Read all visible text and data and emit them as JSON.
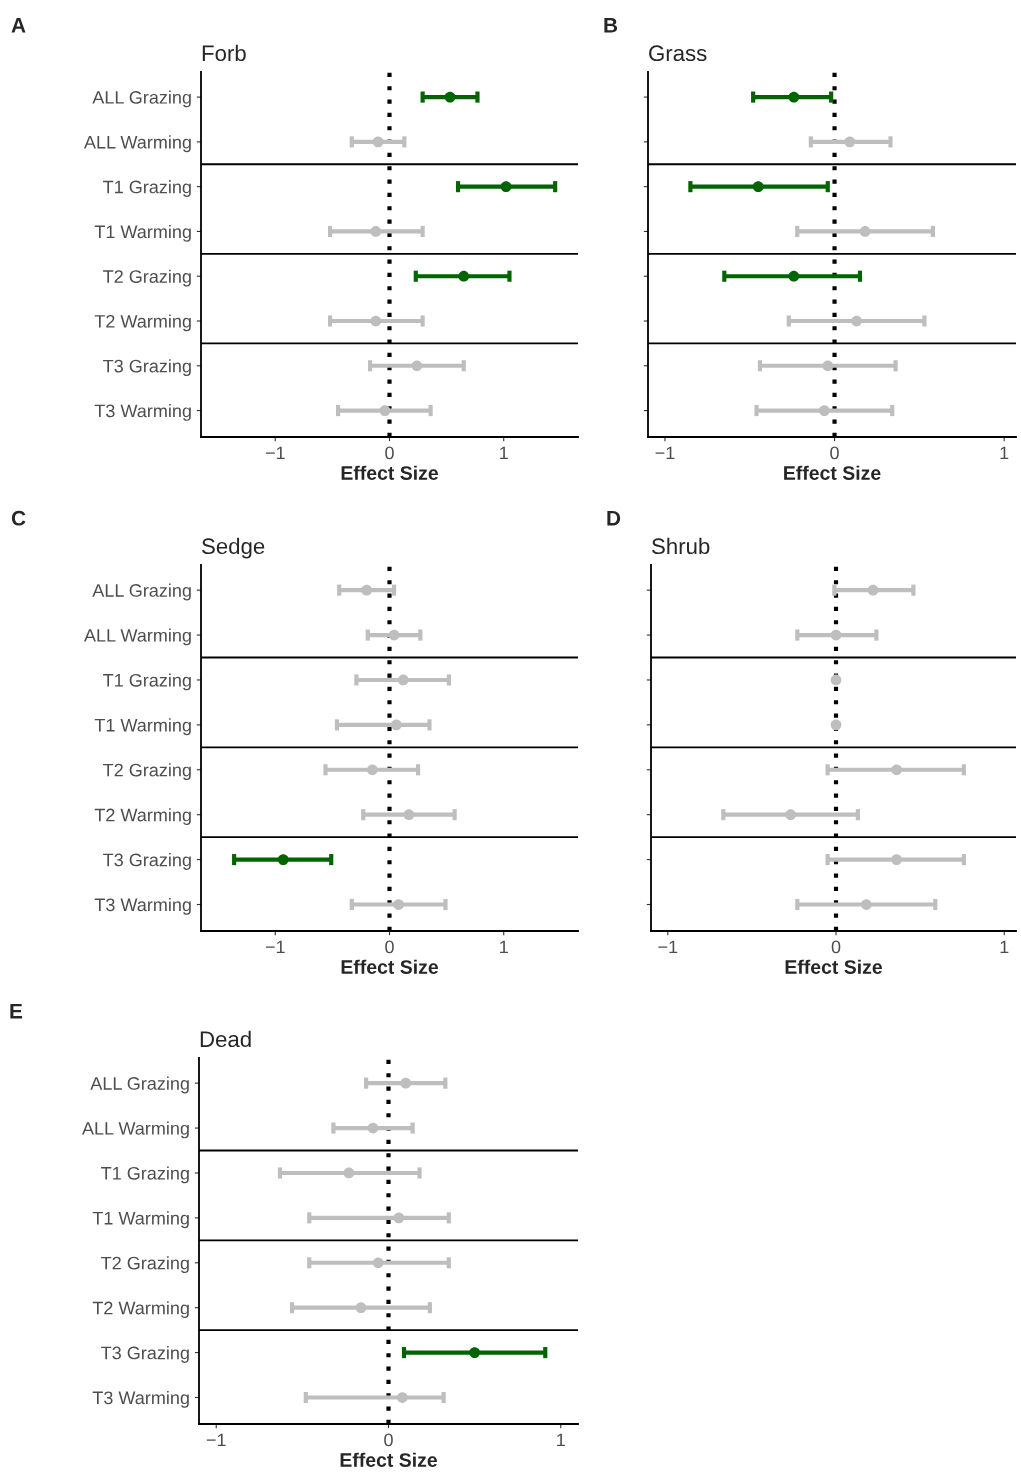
{
  "chart_data": [
    {
      "type": "scatter",
      "orientation": "horizontal",
      "title": "Forb",
      "xlabel": "Effect Size",
      "annotations": [
        "A"
      ],
      "categories": [
        "ALL Grazing",
        "ALL Warming",
        "T1 Grazing",
        "T1 Warming",
        "T2 Grazing",
        "T2 Warming",
        "T3 Grazing",
        "T3 Warming"
      ],
      "values": [
        0.53,
        -0.1,
        1.02,
        -0.12,
        0.65,
        -0.12,
        0.24,
        -0.04
      ],
      "errors": [
        [
          0.29,
          0.77
        ],
        [
          -0.33,
          0.13
        ],
        [
          0.6,
          1.45
        ],
        [
          -0.52,
          0.29
        ],
        [
          0.23,
          1.05
        ],
        [
          -0.52,
          0.29
        ],
        [
          -0.17,
          0.65
        ],
        [
          -0.45,
          0.36
        ]
      ],
      "colors": [
        "#006400",
        "#bebebe",
        "#006400",
        "#bebebe",
        "#006400",
        "#bebebe",
        "#bebebe",
        "#bebebe"
      ],
      "xlim": [
        -1.65,
        1.65
      ],
      "xticks": [
        -1,
        0,
        1
      ],
      "ref_lines": [
        {
          "axis": "x",
          "value": 0,
          "line_style": "dotted",
          "color": "#000000"
        }
      ],
      "marker": "circle",
      "grid": false,
      "legend": false
    },
    {
      "type": "scatter",
      "orientation": "horizontal",
      "title": "Grass",
      "xlabel": "Effect Size",
      "annotations": [
        "B"
      ],
      "tick_labels": "x",
      "categories": [
        null,
        null,
        null,
        null,
        null,
        null,
        null,
        null
      ],
      "values": [
        -0.24,
        0.09,
        -0.45,
        0.18,
        -0.24,
        0.13,
        -0.04,
        -0.06
      ],
      "errors": [
        [
          -0.48,
          -0.02
        ],
        [
          -0.14,
          0.33
        ],
        [
          -0.85,
          -0.04
        ],
        [
          -0.22,
          0.58
        ],
        [
          -0.65,
          0.15
        ],
        [
          -0.27,
          0.53
        ],
        [
          -0.44,
          0.36
        ],
        [
          -0.46,
          0.34
        ]
      ],
      "colors": [
        "#006400",
        "#bebebe",
        "#006400",
        "#bebebe",
        "#006400",
        "#bebebe",
        "#bebebe",
        "#bebebe"
      ],
      "xlim": [
        -1.1,
        1.07
      ],
      "xticks": [
        -1,
        0,
        1
      ],
      "ref_lines": [
        {
          "axis": "x",
          "value": 0,
          "line_style": "dotted",
          "color": "#000000"
        }
      ],
      "marker": "circle",
      "grid": false,
      "legend": false
    },
    {
      "type": "scatter",
      "orientation": "horizontal",
      "title": "Sedge",
      "xlabel": "Effect Size",
      "annotations": [
        "C"
      ],
      "categories": [
        "ALL Grazing",
        "ALL Warming",
        "T1 Grazing",
        "T1 Warming",
        "T2 Grazing",
        "T2 Warming",
        "T3 Grazing",
        "T3 Warming"
      ],
      "values": [
        -0.2,
        0.04,
        0.12,
        0.06,
        -0.15,
        0.17,
        -0.93,
        0.08
      ],
      "errors": [
        [
          -0.44,
          0.04
        ],
        [
          -0.19,
          0.27
        ],
        [
          -0.29,
          0.52
        ],
        [
          -0.46,
          0.35
        ],
        [
          -0.56,
          0.25
        ],
        [
          -0.23,
          0.57
        ],
        [
          -1.36,
          -0.51
        ],
        [
          -0.33,
          0.49
        ]
      ],
      "colors": [
        "#bebebe",
        "#bebebe",
        "#bebebe",
        "#bebebe",
        "#bebebe",
        "#bebebe",
        "#006400",
        "#bebebe"
      ],
      "xlim": [
        -1.65,
        1.65
      ],
      "xticks": [
        -1,
        0,
        1
      ],
      "ref_lines": [
        {
          "axis": "x",
          "value": 0,
          "line_style": "dotted",
          "color": "#000000"
        }
      ],
      "marker": "circle",
      "grid": false,
      "legend": false
    },
    {
      "type": "scatter",
      "orientation": "horizontal",
      "title": "Shrub",
      "xlabel": "Effect Size",
      "annotations": [
        "D"
      ],
      "tick_labels": "x",
      "categories": [
        null,
        null,
        null,
        null,
        null,
        null,
        null,
        null
      ],
      "values": [
        0.22,
        0.0,
        0.0,
        0.0,
        0.36,
        -0.27,
        0.36,
        0.18
      ],
      "errors": [
        [
          -0.01,
          0.46
        ],
        [
          -0.23,
          0.24
        ],
        null,
        null,
        [
          -0.05,
          0.76
        ],
        [
          -0.67,
          0.13
        ],
        [
          -0.05,
          0.76
        ],
        [
          -0.23,
          0.59
        ]
      ],
      "colors": [
        "#bebebe",
        "#bebebe",
        "#bebebe",
        "#bebebe",
        "#bebebe",
        "#bebebe",
        "#bebebe",
        "#bebebe"
      ],
      "xlim": [
        -1.1,
        1.07
      ],
      "xticks": [
        -1,
        0,
        1
      ],
      "ref_lines": [
        {
          "axis": "x",
          "value": 0,
          "line_style": "dotted",
          "color": "#000000"
        }
      ],
      "marker": "circle",
      "grid": false,
      "legend": false
    },
    {
      "type": "scatter",
      "orientation": "horizontal",
      "title": "Dead",
      "xlabel": "Effect Size",
      "annotations": [
        "E"
      ],
      "categories": [
        "ALL Grazing",
        "ALL Warming",
        "T1 Grazing",
        "T1 Warming",
        "T2 Grazing",
        "T2 Warming",
        "T3 Grazing",
        "T3 Warming"
      ],
      "values": [
        0.1,
        -0.09,
        -0.23,
        0.06,
        -0.06,
        -0.16,
        0.5,
        0.08
      ],
      "errors": [
        [
          -0.13,
          0.33
        ],
        [
          -0.32,
          0.14
        ],
        [
          -0.63,
          0.18
        ],
        [
          -0.46,
          0.35
        ],
        [
          -0.46,
          0.35
        ],
        [
          -0.56,
          0.24
        ],
        [
          0.09,
          0.91
        ],
        [
          -0.48,
          0.32
        ]
      ],
      "colors": [
        "#bebebe",
        "#bebebe",
        "#bebebe",
        "#bebebe",
        "#bebebe",
        "#bebebe",
        "#006400",
        "#bebebe"
      ],
      "xlim": [
        -1.1,
        1.1
      ],
      "xticks": [
        -1,
        0,
        1
      ],
      "ref_lines": [
        {
          "axis": "x",
          "value": 0,
          "line_style": "dotted",
          "color": "#000000"
        }
      ],
      "marker": "circle",
      "grid": false,
      "legend": false
    }
  ]
}
